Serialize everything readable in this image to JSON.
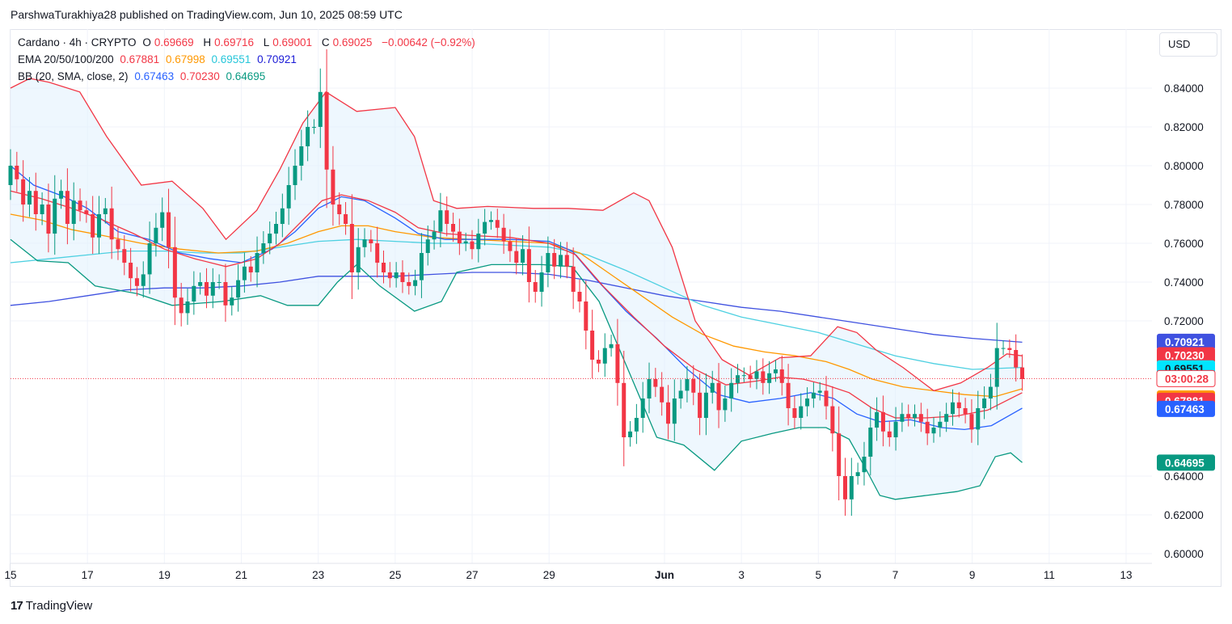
{
  "header": {
    "attribution": "ParshwaTurakhiya28 published on TradingView.com, Jun 10, 2025 08:59 UTC"
  },
  "currency_button": "USD",
  "legend": {
    "row1": {
      "symbol": "Cardano · 4h · CRYPTO",
      "o_label": "O",
      "o_value": "0.69669",
      "h_label": "H",
      "h_value": "0.69716",
      "l_label": "L",
      "l_value": "0.69001",
      "c_label": "C",
      "c_value": "0.69025",
      "change": "−0.00642 (−0.92%)"
    },
    "row2": {
      "label": "EMA 20/50/100/200",
      "v1": "0.67881",
      "v2": "0.67998",
      "v3": "0.69551",
      "v4": "0.70921"
    },
    "row3": {
      "label": "BB (20, SMA, close, 2)",
      "v1": "0.67463",
      "v2": "0.70230",
      "v3": "0.64695"
    }
  },
  "footer": {
    "brand": "TradingView",
    "logo_mark": "17"
  },
  "colors": {
    "up": "#089981",
    "down": "#f23645",
    "ema20": "#f23645",
    "ema50": "#ff9800",
    "ema100": "#4dd0e1",
    "ema200": "#3f51e0",
    "bb_basis": "#2962ff",
    "bb_upper": "#f23645",
    "bb_lower": "#089981",
    "bb_fill": "#e3f2fd",
    "grid": "#f0f3fa",
    "last_line": "#f23645"
  },
  "chart_data": {
    "type": "candlestick",
    "title": "Cardano · 4h · CRYPTO",
    "ylim": [
      0.6,
      0.845
    ],
    "y_ticks": [
      "0.84000",
      "0.82000",
      "0.80000",
      "0.78000",
      "0.76000",
      "0.74000",
      "0.72000",
      "0.64000",
      "0.62000",
      "0.60000"
    ],
    "x_ticks": [
      {
        "label": "15",
        "day": 15,
        "bold": false
      },
      {
        "label": "17",
        "day": 17,
        "bold": false
      },
      {
        "label": "19",
        "day": 19,
        "bold": false
      },
      {
        "label": "21",
        "day": 21,
        "bold": false
      },
      {
        "label": "23",
        "day": 23,
        "bold": false
      },
      {
        "label": "25",
        "day": 25,
        "bold": false
      },
      {
        "label": "27",
        "day": 27,
        "bold": false
      },
      {
        "label": "29",
        "day": 29,
        "bold": false
      },
      {
        "label": "Jun",
        "day": 32,
        "bold": true
      },
      {
        "label": "3",
        "day": 34,
        "bold": false
      },
      {
        "label": "5",
        "day": 36,
        "bold": false
      },
      {
        "label": "7",
        "day": 38,
        "bold": false
      },
      {
        "label": "9",
        "day": 40,
        "bold": false
      },
      {
        "label": "11",
        "day": 42,
        "bold": false
      },
      {
        "label": "13",
        "day": 44,
        "bold": false
      }
    ],
    "x_domain": [
      15,
      46.3
    ],
    "last_close": 0.69025,
    "price_labels": [
      {
        "text": "0.70921",
        "value": 0.70921,
        "color": "#3f51e0"
      },
      {
        "text": "0.70230",
        "value": 0.7023,
        "color": "#f23645"
      },
      {
        "text": "0.69551",
        "value": 0.69551,
        "color": "#00e5ff",
        "dark_text": true
      },
      {
        "text": "03:00:28",
        "value": 0.69025,
        "color": "#ffffff",
        "outline": "#f23645",
        "text_color": "#f23645"
      },
      {
        "text": "0.67998",
        "value": 0.67998,
        "color": "#ff9800"
      },
      {
        "text": "0.67881",
        "value": 0.67881,
        "color": "#f23645"
      },
      {
        "text": "0.67463",
        "value": 0.67463,
        "color": "#2962ff"
      },
      {
        "text": "0.64695",
        "value": 0.64695,
        "color": "#089981"
      }
    ],
    "candles_close": [
      0.8,
      0.793,
      0.78,
      0.787,
      0.775,
      0.78,
      0.765,
      0.783,
      0.787,
      0.77,
      0.782,
      0.777,
      0.775,
      0.763,
      0.775,
      0.778,
      0.762,
      0.757,
      0.75,
      0.742,
      0.738,
      0.744,
      0.76,
      0.768,
      0.776,
      0.758,
      0.732,
      0.724,
      0.73,
      0.738,
      0.74,
      0.733,
      0.74,
      0.74,
      0.728,
      0.732,
      0.741,
      0.748,
      0.745,
      0.755,
      0.76,
      0.765,
      0.77,
      0.778,
      0.79,
      0.8,
      0.81,
      0.82,
      0.82,
      0.838,
      0.798,
      0.78,
      0.775,
      0.77,
      0.745,
      0.758,
      0.762,
      0.76,
      0.75,
      0.745,
      0.742,
      0.745,
      0.74,
      0.738,
      0.741,
      0.755,
      0.762,
      0.766,
      0.777,
      0.77,
      0.766,
      0.76,
      0.761,
      0.757,
      0.765,
      0.771,
      0.772,
      0.768,
      0.761,
      0.756,
      0.75,
      0.757,
      0.74,
      0.735,
      0.745,
      0.755,
      0.748,
      0.754,
      0.748,
      0.735,
      0.73,
      0.715,
      0.7,
      0.698,
      0.706,
      0.708,
      0.688,
      0.66,
      0.663,
      0.67,
      0.68,
      0.69,
      0.686,
      0.678,
      0.667,
      0.68,
      0.684,
      0.69,
      0.683,
      0.67,
      0.683,
      0.688,
      0.674,
      0.68,
      0.688,
      0.692,
      0.692,
      0.69,
      0.694,
      0.688,
      0.693,
      0.695,
      0.688,
      0.675,
      0.67,
      0.676,
      0.68,
      0.683,
      0.684,
      0.676,
      0.662,
      0.64,
      0.628,
      0.64,
      0.642,
      0.65,
      0.665,
      0.673,
      0.663,
      0.66,
      0.668,
      0.672,
      0.67,
      0.672,
      0.668,
      0.662,
      0.665,
      0.668,
      0.672,
      0.678,
      0.675,
      0.672,
      0.664,
      0.675,
      0.68,
      0.686,
      0.706,
      0.706,
      0.705,
      0.696,
      0.69
    ],
    "candles_open": [
      0.79,
      0.8,
      0.793,
      0.78,
      0.787,
      0.775,
      0.78,
      0.765,
      0.783,
      0.787,
      0.77,
      0.782,
      0.777,
      0.775,
      0.763,
      0.775,
      0.778,
      0.762,
      0.757,
      0.75,
      0.742,
      0.738,
      0.744,
      0.76,
      0.768,
      0.776,
      0.758,
      0.732,
      0.724,
      0.73,
      0.738,
      0.74,
      0.733,
      0.74,
      0.74,
      0.728,
      0.732,
      0.741,
      0.748,
      0.745,
      0.755,
      0.76,
      0.765,
      0.77,
      0.778,
      0.79,
      0.8,
      0.81,
      0.82,
      0.82,
      0.838,
      0.798,
      0.78,
      0.775,
      0.77,
      0.745,
      0.758,
      0.762,
      0.76,
      0.75,
      0.745,
      0.742,
      0.745,
      0.74,
      0.738,
      0.741,
      0.755,
      0.762,
      0.766,
      0.777,
      0.77,
      0.766,
      0.76,
      0.761,
      0.757,
      0.765,
      0.771,
      0.772,
      0.768,
      0.761,
      0.756,
      0.75,
      0.757,
      0.74,
      0.735,
      0.745,
      0.755,
      0.748,
      0.754,
      0.748,
      0.735,
      0.73,
      0.715,
      0.7,
      0.698,
      0.706,
      0.708,
      0.688,
      0.66,
      0.663,
      0.67,
      0.68,
      0.69,
      0.686,
      0.678,
      0.667,
      0.68,
      0.684,
      0.69,
      0.683,
      0.67,
      0.683,
      0.688,
      0.674,
      0.68,
      0.688,
      0.692,
      0.692,
      0.69,
      0.694,
      0.688,
      0.693,
      0.695,
      0.688,
      0.675,
      0.67,
      0.676,
      0.68,
      0.683,
      0.684,
      0.676,
      0.662,
      0.64,
      0.628,
      0.64,
      0.642,
      0.65,
      0.665,
      0.673,
      0.663,
      0.66,
      0.668,
      0.672,
      0.67,
      0.672,
      0.668,
      0.662,
      0.665,
      0.668,
      0.672,
      0.678,
      0.675,
      0.672,
      0.664,
      0.675,
      0.68,
      0.686,
      0.706,
      0.706,
      0.705,
      0.696
    ],
    "bb_upper": [
      [
        15,
        0.84
      ],
      [
        15.5,
        0.845
      ],
      [
        16,
        0.843
      ],
      [
        16.8,
        0.838
      ],
      [
        17.5,
        0.815
      ],
      [
        18.4,
        0.79
      ],
      [
        19.2,
        0.792
      ],
      [
        20,
        0.778
      ],
      [
        20.6,
        0.762
      ],
      [
        21.4,
        0.777
      ],
      [
        22,
        0.798
      ],
      [
        22.6,
        0.822
      ],
      [
        23.2,
        0.838
      ],
      [
        24,
        0.828
      ],
      [
        25,
        0.83
      ],
      [
        25.5,
        0.815
      ],
      [
        26,
        0.782
      ],
      [
        26.6,
        0.778
      ],
      [
        27.4,
        0.779
      ],
      [
        28.6,
        0.778
      ],
      [
        29.5,
        0.778
      ],
      [
        30.4,
        0.777
      ],
      [
        31.2,
        0.786
      ],
      [
        31.6,
        0.782
      ],
      [
        32.2,
        0.758
      ],
      [
        32.8,
        0.72
      ],
      [
        33.5,
        0.7
      ],
      [
        34.2,
        0.692
      ],
      [
        35,
        0.701
      ],
      [
        35.8,
        0.702
      ],
      [
        36.5,
        0.717
      ],
      [
        37,
        0.714
      ],
      [
        37.5,
        0.705
      ],
      [
        38.2,
        0.696
      ],
      [
        39,
        0.684
      ],
      [
        39.7,
        0.688
      ],
      [
        40.4,
        0.696
      ],
      [
        40.9,
        0.703
      ],
      [
        41.3,
        0.702
      ]
    ],
    "bb_lower": [
      [
        15,
        0.762
      ],
      [
        15.7,
        0.751
      ],
      [
        16.5,
        0.75
      ],
      [
        17.2,
        0.738
      ],
      [
        18.3,
        0.734
      ],
      [
        19.2,
        0.728
      ],
      [
        20.5,
        0.73
      ],
      [
        21.5,
        0.733
      ],
      [
        22.2,
        0.728
      ],
      [
        23,
        0.728
      ],
      [
        23.5,
        0.74
      ],
      [
        24,
        0.749
      ],
      [
        24.6,
        0.738
      ],
      [
        25.5,
        0.725
      ],
      [
        26.2,
        0.73
      ],
      [
        26.6,
        0.745
      ],
      [
        27.5,
        0.749
      ],
      [
        28.8,
        0.749
      ],
      [
        29.6,
        0.748
      ],
      [
        30.3,
        0.73
      ],
      [
        31.2,
        0.688
      ],
      [
        31.8,
        0.66
      ],
      [
        32.5,
        0.656
      ],
      [
        33.3,
        0.643
      ],
      [
        34,
        0.658
      ],
      [
        34.8,
        0.662
      ],
      [
        35.5,
        0.665
      ],
      [
        36.2,
        0.665
      ],
      [
        36.8,
        0.659
      ],
      [
        37.2,
        0.645
      ],
      [
        37.6,
        0.63
      ],
      [
        38,
        0.628
      ],
      [
        38.8,
        0.63
      ],
      [
        39.6,
        0.632
      ],
      [
        40.2,
        0.635
      ],
      [
        40.6,
        0.65
      ],
      [
        41,
        0.652
      ],
      [
        41.3,
        0.647
      ]
    ],
    "bb_basis": [
      [
        15,
        0.8
      ],
      [
        15.6,
        0.79
      ],
      [
        16.4,
        0.784
      ],
      [
        17,
        0.778
      ],
      [
        17.8,
        0.766
      ],
      [
        18.6,
        0.762
      ],
      [
        19.4,
        0.755
      ],
      [
        20.2,
        0.752
      ],
      [
        21,
        0.75
      ],
      [
        21.8,
        0.757
      ],
      [
        22.4,
        0.766
      ],
      [
        23,
        0.778
      ],
      [
        23.6,
        0.784
      ],
      [
        24.2,
        0.782
      ],
      [
        25,
        0.773
      ],
      [
        25.6,
        0.765
      ],
      [
        26.3,
        0.762
      ],
      [
        27,
        0.762
      ],
      [
        28,
        0.762
      ],
      [
        29,
        0.761
      ],
      [
        29.6,
        0.756
      ],
      [
        30.2,
        0.742
      ],
      [
        31,
        0.725
      ],
      [
        31.8,
        0.711
      ],
      [
        32.6,
        0.695
      ],
      [
        33.4,
        0.682
      ],
      [
        34.2,
        0.678
      ],
      [
        35,
        0.68
      ],
      [
        35.8,
        0.683
      ],
      [
        36.4,
        0.68
      ],
      [
        37,
        0.672
      ],
      [
        37.6,
        0.668
      ],
      [
        38.4,
        0.669
      ],
      [
        39.2,
        0.665
      ],
      [
        39.8,
        0.664
      ],
      [
        40.5,
        0.666
      ],
      [
        41.3,
        0.675
      ]
    ],
    "ema20": [
      [
        15,
        0.787
      ],
      [
        15.8,
        0.783
      ],
      [
        16.6,
        0.778
      ],
      [
        17.4,
        0.772
      ],
      [
        18.2,
        0.765
      ],
      [
        19,
        0.757
      ],
      [
        19.8,
        0.752
      ],
      [
        20.6,
        0.748
      ],
      [
        21.4,
        0.752
      ],
      [
        22,
        0.76
      ],
      [
        22.6,
        0.772
      ],
      [
        23.1,
        0.782
      ],
      [
        23.6,
        0.785
      ],
      [
        24.3,
        0.782
      ],
      [
        25,
        0.776
      ],
      [
        25.6,
        0.768
      ],
      [
        26.3,
        0.765
      ],
      [
        27,
        0.764
      ],
      [
        28,
        0.763
      ],
      [
        29,
        0.76
      ],
      [
        29.7,
        0.754
      ],
      [
        30.4,
        0.738
      ],
      [
        31.2,
        0.722
      ],
      [
        32,
        0.707
      ],
      [
        32.8,
        0.695
      ],
      [
        33.6,
        0.687
      ],
      [
        34.4,
        0.689
      ],
      [
        35,
        0.691
      ],
      [
        35.6,
        0.69
      ],
      [
        36.2,
        0.687
      ],
      [
        36.8,
        0.683
      ],
      [
        37.4,
        0.675
      ],
      [
        38,
        0.67
      ],
      [
        38.8,
        0.67
      ],
      [
        39.6,
        0.671
      ],
      [
        40.4,
        0.674
      ],
      [
        41.3,
        0.683
      ]
    ],
    "ema50": [
      [
        15,
        0.775
      ],
      [
        15.8,
        0.772
      ],
      [
        16.6,
        0.767
      ],
      [
        17.4,
        0.764
      ],
      [
        18.4,
        0.76
      ],
      [
        19.4,
        0.757
      ],
      [
        20.4,
        0.755
      ],
      [
        21.4,
        0.756
      ],
      [
        22.2,
        0.76
      ],
      [
        23,
        0.766
      ],
      [
        23.6,
        0.769
      ],
      [
        24.3,
        0.769
      ],
      [
        25,
        0.766
      ],
      [
        26,
        0.763
      ],
      [
        27,
        0.762
      ],
      [
        28,
        0.761
      ],
      [
        29,
        0.76
      ],
      [
        29.8,
        0.755
      ],
      [
        30.6,
        0.744
      ],
      [
        31.4,
        0.733
      ],
      [
        32.2,
        0.722
      ],
      [
        33,
        0.713
      ],
      [
        33.8,
        0.707
      ],
      [
        34.6,
        0.704
      ],
      [
        35.4,
        0.702
      ],
      [
        36.2,
        0.699
      ],
      [
        36.8,
        0.695
      ],
      [
        37.4,
        0.69
      ],
      [
        38.2,
        0.686
      ],
      [
        39,
        0.684
      ],
      [
        39.8,
        0.682
      ],
      [
        40.6,
        0.681
      ],
      [
        41.3,
        0.685
      ]
    ],
    "ema100": [
      [
        15,
        0.75
      ],
      [
        16,
        0.752
      ],
      [
        17,
        0.754
      ],
      [
        18,
        0.756
      ],
      [
        19,
        0.756
      ],
      [
        20,
        0.755
      ],
      [
        21,
        0.755
      ],
      [
        22,
        0.758
      ],
      [
        23,
        0.761
      ],
      [
        24,
        0.762
      ],
      [
        25,
        0.761
      ],
      [
        26,
        0.76
      ],
      [
        27,
        0.76
      ],
      [
        28,
        0.759
      ],
      [
        29,
        0.758
      ],
      [
        30,
        0.754
      ],
      [
        31,
        0.746
      ],
      [
        32,
        0.737
      ],
      [
        33,
        0.728
      ],
      [
        34,
        0.722
      ],
      [
        35,
        0.718
      ],
      [
        36,
        0.714
      ],
      [
        37,
        0.708
      ],
      [
        38,
        0.702
      ],
      [
        39,
        0.698
      ],
      [
        40,
        0.695
      ],
      [
        41.3,
        0.696
      ]
    ],
    "ema200": [
      [
        15,
        0.728
      ],
      [
        16,
        0.73
      ],
      [
        17,
        0.733
      ],
      [
        18,
        0.736
      ],
      [
        19,
        0.737
      ],
      [
        20,
        0.737
      ],
      [
        21,
        0.738
      ],
      [
        22,
        0.74
      ],
      [
        23,
        0.743
      ],
      [
        24,
        0.743
      ],
      [
        25,
        0.743
      ],
      [
        26,
        0.744
      ],
      [
        27,
        0.745
      ],
      [
        28,
        0.745
      ],
      [
        29,
        0.744
      ],
      [
        30,
        0.741
      ],
      [
        31,
        0.737
      ],
      [
        32,
        0.733
      ],
      [
        33,
        0.73
      ],
      [
        34,
        0.727
      ],
      [
        35,
        0.725
      ],
      [
        36,
        0.722
      ],
      [
        37,
        0.719
      ],
      [
        38,
        0.716
      ],
      [
        39,
        0.713
      ],
      [
        40,
        0.711
      ],
      [
        41.3,
        0.709
      ]
    ]
  }
}
